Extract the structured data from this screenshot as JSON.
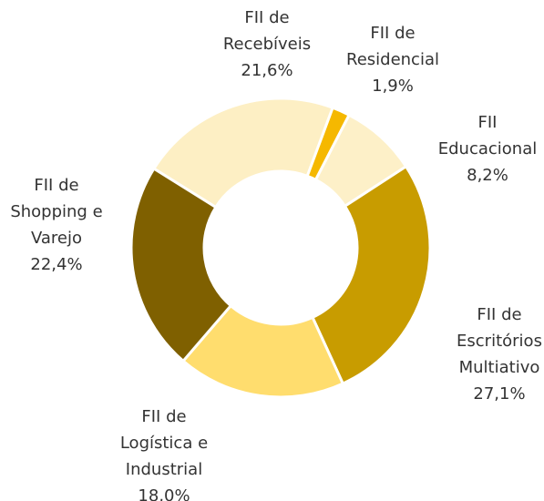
{
  "chart_data": {
    "type": "donut",
    "categories": [
      "FII de\nRecebíveis",
      "FII de\nResidencial",
      "FII\nEducacional",
      "FII de\nEscritórios\nMultiativo",
      "FII de\nLogística e\nIndustrial",
      "FII de\nShopping e\nVarejo"
    ],
    "values": [
      21.6,
      1.9,
      8.2,
      27.1,
      18.0,
      22.4
    ],
    "value_labels": [
      "21,6%",
      "1,9%",
      "8,2%",
      "27,1%",
      "18,0%",
      "22,4%"
    ],
    "colors": [
      "#fdefc4",
      "#f5b800",
      "#fdf0c8",
      "#c89c00",
      "#ffdd6e",
      "#7f6000"
    ]
  }
}
